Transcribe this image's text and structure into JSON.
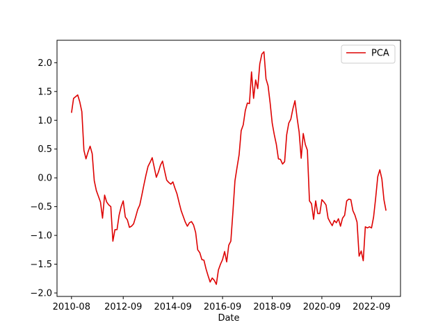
{
  "chart_data": {
    "type": "line",
    "xlabel": "Date",
    "x": [
      "2010-08",
      "2010-09",
      "2010-10",
      "2010-11",
      "2010-12",
      "2011-01",
      "2011-02",
      "2011-03",
      "2011-04",
      "2011-05",
      "2011-06",
      "2011-07",
      "2011-08",
      "2011-09",
      "2011-10",
      "2011-11",
      "2011-12",
      "2012-01",
      "2012-02",
      "2012-03",
      "2012-04",
      "2012-05",
      "2012-06",
      "2012-07",
      "2012-08",
      "2012-09",
      "2012-10",
      "2012-11",
      "2012-12",
      "2013-01",
      "2013-02",
      "2013-03",
      "2013-04",
      "2013-05",
      "2013-06",
      "2013-07",
      "2013-08",
      "2013-09",
      "2013-10",
      "2013-11",
      "2013-12",
      "2014-01",
      "2014-02",
      "2014-03",
      "2014-04",
      "2014-05",
      "2014-06",
      "2014-07",
      "2014-08",
      "2014-09",
      "2014-10",
      "2014-11",
      "2014-12",
      "2015-01",
      "2015-02",
      "2015-03",
      "2015-04",
      "2015-05",
      "2015-06",
      "2015-07",
      "2015-08",
      "2015-09",
      "2015-10",
      "2015-11",
      "2015-12",
      "2016-01",
      "2016-02",
      "2016-03",
      "2016-04",
      "2016-05",
      "2016-06",
      "2016-07",
      "2016-08",
      "2016-09",
      "2016-10",
      "2016-11",
      "2016-12",
      "2017-01",
      "2017-02",
      "2017-03",
      "2017-04",
      "2017-05",
      "2017-06",
      "2017-07",
      "2017-08",
      "2017-09",
      "2017-10",
      "2017-11",
      "2017-12",
      "2018-01",
      "2018-02",
      "2018-03",
      "2018-04",
      "2018-05",
      "2018-06",
      "2018-07",
      "2018-08",
      "2018-09",
      "2018-10",
      "2018-11",
      "2018-12",
      "2019-01",
      "2019-02",
      "2019-03",
      "2019-04",
      "2019-05",
      "2019-06",
      "2019-07",
      "2019-08",
      "2019-09",
      "2019-10",
      "2019-11",
      "2019-12",
      "2020-01",
      "2020-02",
      "2020-03",
      "2020-04",
      "2020-05",
      "2020-06",
      "2020-07",
      "2020-08",
      "2020-09",
      "2020-10",
      "2020-11",
      "2020-12",
      "2021-01",
      "2021-02",
      "2021-03",
      "2021-04",
      "2021-05",
      "2021-06",
      "2021-07",
      "2021-08",
      "2021-09",
      "2021-10",
      "2021-11",
      "2021-12",
      "2022-01",
      "2022-02",
      "2022-03",
      "2022-04",
      "2022-05",
      "2022-06",
      "2022-07",
      "2022-08",
      "2022-09",
      "2022-10",
      "2022-11",
      "2022-12",
      "2023-01",
      "2023-02",
      "2023-03",
      "2023-04"
    ],
    "series": [
      {
        "name": "PCA",
        "color": "#dd0000",
        "values": [
          1.13,
          1.38,
          1.41,
          1.44,
          1.32,
          1.15,
          0.48,
          0.33,
          0.45,
          0.55,
          0.42,
          -0.05,
          -0.22,
          -0.32,
          -0.42,
          -0.7,
          -0.3,
          -0.42,
          -0.47,
          -0.5,
          -1.1,
          -0.9,
          -0.9,
          -0.65,
          -0.5,
          -0.4,
          -0.68,
          -0.73,
          -0.86,
          -0.84,
          -0.8,
          -0.68,
          -0.55,
          -0.47,
          -0.3,
          -0.12,
          0.05,
          0.2,
          0.27,
          0.35,
          0.18,
          0.01,
          0.1,
          0.22,
          0.29,
          0.12,
          -0.04,
          -0.08,
          -0.11,
          -0.07,
          -0.18,
          -0.28,
          -0.43,
          -0.57,
          -0.67,
          -0.77,
          -0.84,
          -0.78,
          -0.76,
          -0.82,
          -0.95,
          -1.25,
          -1.3,
          -1.42,
          -1.43,
          -1.58,
          -1.7,
          -1.81,
          -1.74,
          -1.78,
          -1.85,
          -1.6,
          -1.5,
          -1.42,
          -1.28,
          -1.46,
          -1.17,
          -1.1,
          -0.6,
          -0.05,
          0.18,
          0.4,
          0.82,
          0.92,
          1.17,
          1.3,
          1.29,
          1.84,
          1.38,
          1.7,
          1.55,
          1.98,
          2.15,
          2.19,
          1.72,
          1.6,
          1.3,
          0.95,
          0.75,
          0.58,
          0.33,
          0.32,
          0.24,
          0.28,
          0.75,
          0.95,
          1.02,
          1.2,
          1.34,
          1.05,
          0.8,
          0.34,
          0.77,
          0.58,
          0.48,
          -0.4,
          -0.45,
          -0.72,
          -0.4,
          -0.62,
          -0.62,
          -0.38,
          -0.42,
          -0.47,
          -0.7,
          -0.77,
          -0.83,
          -0.74,
          -0.78,
          -0.71,
          -0.84,
          -0.7,
          -0.65,
          -0.4,
          -0.37,
          -0.38,
          -0.57,
          -0.65,
          -0.77,
          -1.36,
          -1.27,
          -1.44,
          -0.85,
          -0.87,
          -0.85,
          -0.87,
          -0.68,
          -0.35,
          0.02,
          0.14,
          -0.02,
          -0.38,
          -0.57
        ]
      }
    ],
    "xlim": [
      "2010-01",
      "2023-11"
    ],
    "xticks": [
      "2010-08",
      "2012-09",
      "2014-09",
      "2016-09",
      "2018-09",
      "2020-09",
      "2022-09"
    ],
    "ylim": [
      -2.06,
      2.39
    ],
    "yticks": [
      {
        "value": -2,
        "label": "−2.0"
      },
      {
        "value": -1.5,
        "label": "−1.5"
      },
      {
        "value": -1,
        "label": "−1.0"
      },
      {
        "value": -0.5,
        "label": "−0.5"
      },
      {
        "value": 0,
        "label": "0.0"
      },
      {
        "value": 0.5,
        "label": "0.5"
      },
      {
        "value": 1,
        "label": "1.0"
      },
      {
        "value": 1.5,
        "label": "1.5"
      },
      {
        "value": 2,
        "label": "2.0"
      }
    ],
    "legend": "upper right",
    "grid": false
  }
}
